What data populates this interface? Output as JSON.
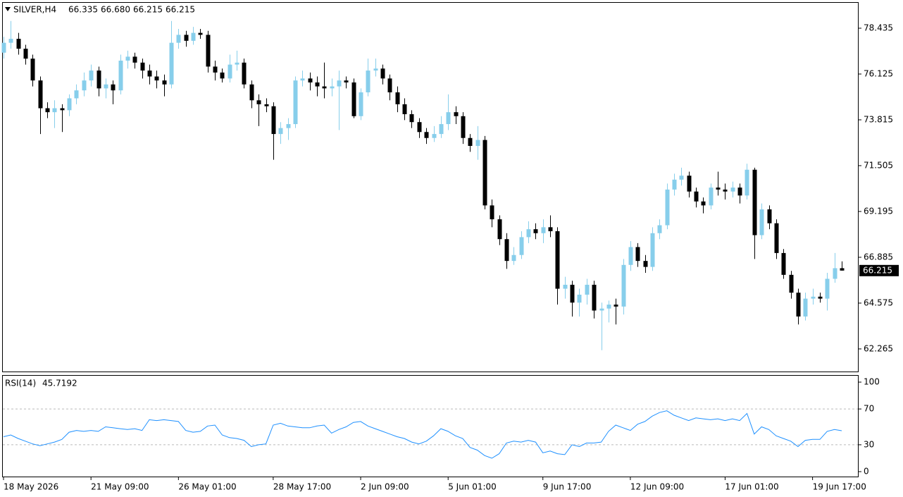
{
  "chart_data": {
    "type": "candlestick",
    "symbol": "SILVER,H4",
    "header_values": [
      66.335,
      {
        "value": 66.68,
        "label": "66.680"
      },
      66.215,
      66.215
    ],
    "current_price": 66.215,
    "up_color": "#87ceeb",
    "down_color": "#000000",
    "ylim": [
      61.09,
      79.75
    ],
    "yticks": [
      62.265,
      64.575,
      66.885,
      69.195,
      71.505,
      73.815,
      76.125,
      78.435
    ],
    "categories": [
      "18 May 2026",
      null,
      null,
      null,
      null,
      null,
      null,
      null,
      null,
      null,
      null,
      null,
      "21 May 09:00",
      null,
      null,
      null,
      null,
      null,
      null,
      null,
      null,
      null,
      null,
      null,
      "26 May 01:00",
      null,
      null,
      null,
      null,
      null,
      null,
      null,
      null,
      null,
      null,
      null,
      null,
      "28 May 17:00",
      null,
      null,
      null,
      null,
      null,
      null,
      null,
      null,
      null,
      null,
      null,
      "2 Jun 09:00",
      null,
      null,
      null,
      null,
      null,
      null,
      null,
      null,
      null,
      null,
      null,
      "5 Jun 01:00",
      null,
      null,
      null,
      null,
      null,
      null,
      null,
      null,
      null,
      null,
      null,
      null,
      "9 Jun 17:00",
      null,
      null,
      null,
      null,
      null,
      null,
      null,
      null,
      null,
      null,
      null,
      "12 Jun 09:00",
      null,
      null,
      null,
      null,
      null,
      null,
      null,
      null,
      null,
      null,
      null,
      null,
      "17 Jun 01:00",
      null,
      null,
      null,
      null,
      null,
      null,
      null,
      null,
      null,
      null,
      null,
      "19 Jun 17:00",
      null,
      null,
      null,
      null
    ],
    "ohlc": [
      [
        77.2,
        78.0,
        76.9,
        77.7
      ],
      [
        77.7,
        78.8,
        77.4,
        77.9
      ],
      [
        77.9,
        78.2,
        77.1,
        77.4
      ],
      [
        77.4,
        77.6,
        76.6,
        76.9
      ],
      [
        76.9,
        77.1,
        75.5,
        75.8
      ],
      [
        75.8,
        76.0,
        73.1,
        74.4
      ],
      [
        74.4,
        74.7,
        73.9,
        74.2
      ],
      [
        74.2,
        74.8,
        73.4,
        74.4
      ],
      [
        74.4,
        74.6,
        73.2,
        74.3
      ],
      [
        74.3,
        75.1,
        74.0,
        74.9
      ],
      [
        74.9,
        75.6,
        74.6,
        75.3
      ],
      [
        75.3,
        76.2,
        75.0,
        75.8
      ],
      [
        75.8,
        76.6,
        75.5,
        76.3
      ],
      [
        76.3,
        76.5,
        75.0,
        75.4
      ],
      [
        75.4,
        75.9,
        74.9,
        75.6
      ],
      [
        75.6,
        75.8,
        74.6,
        75.3
      ],
      [
        75.3,
        77.1,
        75.1,
        76.8
      ],
      [
        76.8,
        77.3,
        76.4,
        77.0
      ],
      [
        77.0,
        77.2,
        76.4,
        76.7
      ],
      [
        76.7,
        76.9,
        75.9,
        76.3
      ],
      [
        76.3,
        76.6,
        75.6,
        76.0
      ],
      [
        76.0,
        76.3,
        75.4,
        75.8
      ],
      [
        75.8,
        76.1,
        75.0,
        75.6
      ],
      [
        75.6,
        78.8,
        75.4,
        77.7
      ],
      [
        77.7,
        78.4,
        77.4,
        78.1
      ],
      [
        78.1,
        78.3,
        77.5,
        77.8
      ],
      [
        77.8,
        78.5,
        77.6,
        78.2
      ],
      [
        78.2,
        78.4,
        77.9,
        78.1
      ],
      [
        78.1,
        78.3,
        76.2,
        76.5
      ],
      [
        76.5,
        76.8,
        75.8,
        76.2
      ],
      [
        76.2,
        76.4,
        75.7,
        75.9
      ],
      [
        75.9,
        77.1,
        75.7,
        76.6
      ],
      [
        76.6,
        77.3,
        76.3,
        76.7
      ],
      [
        76.7,
        76.9,
        75.4,
        75.6
      ],
      [
        75.6,
        75.8,
        74.4,
        74.8
      ],
      [
        74.8,
        75.1,
        73.5,
        74.6
      ],
      [
        74.6,
        74.9,
        74.2,
        74.5
      ],
      [
        74.5,
        74.7,
        71.8,
        73.1
      ],
      [
        73.1,
        73.7,
        72.6,
        73.4
      ],
      [
        73.4,
        73.9,
        72.8,
        73.6
      ],
      [
        73.6,
        76.0,
        73.4,
        75.8
      ],
      [
        75.8,
        76.3,
        75.5,
        75.9
      ],
      [
        75.9,
        76.2,
        75.3,
        75.7
      ],
      [
        75.7,
        76.0,
        75.0,
        75.5
      ],
      [
        75.5,
        76.7,
        74.9,
        75.4
      ],
      [
        75.4,
        75.9,
        75.0,
        75.5
      ],
      [
        75.5,
        76.3,
        73.3,
        75.8
      ],
      [
        75.8,
        76.0,
        75.4,
        75.7
      ],
      [
        75.7,
        75.9,
        73.9,
        74.0
      ],
      [
        74.0,
        75.4,
        73.8,
        75.2
      ],
      [
        75.2,
        76.9,
        75.0,
        76.3
      ],
      [
        76.3,
        76.9,
        76.0,
        76.4
      ],
      [
        76.4,
        76.6,
        75.6,
        75.9
      ],
      [
        75.9,
        76.1,
        74.8,
        75.2
      ],
      [
        75.2,
        75.5,
        74.2,
        74.6
      ],
      [
        74.6,
        74.9,
        73.8,
        74.1
      ],
      [
        74.1,
        74.3,
        73.4,
        73.7
      ],
      [
        73.7,
        73.9,
        72.9,
        73.2
      ],
      [
        73.2,
        73.4,
        72.6,
        72.9
      ],
      [
        72.9,
        73.5,
        72.7,
        73.1
      ],
      [
        73.1,
        74.0,
        72.9,
        73.6
      ],
      [
        73.6,
        75.1,
        73.3,
        74.2
      ],
      [
        74.2,
        74.5,
        73.6,
        74.0
      ],
      [
        74.0,
        74.2,
        72.6,
        72.9
      ],
      [
        72.9,
        73.1,
        72.2,
        72.5
      ],
      [
        72.5,
        73.5,
        71.8,
        72.8
      ],
      [
        72.8,
        73.0,
        69.3,
        69.5
      ],
      [
        69.5,
        69.8,
        68.4,
        68.8
      ],
      [
        68.8,
        69.0,
        67.5,
        67.8
      ],
      [
        67.8,
        68.1,
        66.3,
        66.7
      ],
      [
        66.7,
        67.4,
        66.5,
        67.0
      ],
      [
        67.0,
        68.2,
        66.8,
        67.9
      ],
      [
        67.9,
        68.7,
        67.6,
        68.3
      ],
      [
        68.3,
        68.6,
        67.8,
        68.1
      ],
      [
        68.1,
        68.8,
        67.6,
        68.4
      ],
      [
        68.4,
        69.0,
        67.9,
        68.2
      ],
      [
        68.2,
        68.4,
        64.5,
        65.3
      ],
      [
        65.3,
        65.9,
        64.8,
        65.5
      ],
      [
        65.5,
        65.7,
        63.9,
        64.6
      ],
      [
        64.6,
        65.3,
        63.9,
        65.0
      ],
      [
        65.0,
        65.8,
        64.5,
        65.5
      ],
      [
        65.5,
        65.7,
        63.8,
        64.2
      ],
      [
        64.2,
        64.6,
        62.2,
        64.3
      ],
      [
        64.3,
        64.7,
        63.6,
        64.5
      ],
      [
        64.5,
        64.8,
        63.5,
        64.4
      ],
      [
        64.4,
        66.8,
        64.0,
        66.5
      ],
      [
        66.5,
        67.7,
        66.2,
        67.4
      ],
      [
        67.4,
        67.6,
        66.4,
        66.7
      ],
      [
        66.7,
        67.0,
        66.1,
        66.4
      ],
      [
        66.4,
        68.4,
        66.2,
        68.1
      ],
      [
        68.1,
        68.8,
        67.8,
        68.5
      ],
      [
        68.5,
        70.6,
        68.3,
        70.3
      ],
      [
        70.3,
        71.1,
        70.0,
        70.8
      ],
      [
        70.8,
        71.4,
        70.5,
        71.0
      ],
      [
        71.0,
        71.2,
        69.9,
        70.2
      ],
      [
        70.2,
        70.4,
        69.4,
        69.7
      ],
      [
        69.7,
        69.9,
        69.1,
        69.5
      ],
      [
        69.5,
        70.6,
        69.3,
        70.4
      ],
      [
        70.4,
        71.2,
        70.0,
        70.3
      ],
      [
        70.3,
        70.6,
        69.8,
        70.2
      ],
      [
        70.2,
        70.7,
        69.9,
        70.4
      ],
      [
        70.4,
        70.6,
        69.6,
        70.0
      ],
      [
        70.0,
        71.6,
        69.8,
        71.3
      ],
      [
        71.3,
        71.4,
        66.8,
        68.0
      ],
      [
        68.0,
        69.6,
        67.8,
        69.3
      ],
      [
        69.3,
        69.5,
        68.3,
        68.6
      ],
      [
        68.6,
        68.8,
        66.8,
        67.1
      ],
      [
        67.1,
        67.3,
        65.8,
        66.0
      ],
      [
        66.0,
        66.2,
        64.8,
        65.1
      ],
      [
        65.1,
        65.3,
        63.5,
        63.9
      ],
      [
        63.9,
        65.1,
        63.7,
        64.8
      ],
      [
        64.8,
        65.3,
        64.5,
        64.9
      ],
      [
        64.9,
        65.1,
        64.6,
        64.8
      ],
      [
        64.8,
        66.1,
        64.2,
        65.8
      ],
      [
        65.8,
        67.1,
        65.6,
        66.335
      ],
      [
        66.335,
        66.68,
        66.215,
        66.215
      ]
    ],
    "indicator": {
      "type": "line",
      "name": "RSI(14)",
      "color": "#1e90ff",
      "ylim": [
        -5.5,
        107.9
      ],
      "yticks": [
        0,
        30,
        70,
        100
      ],
      "levels": [
        30,
        70
      ],
      "values": [
        39,
        41,
        37,
        34,
        31,
        29,
        31,
        33,
        36,
        44,
        46,
        45,
        46,
        45,
        50,
        49,
        48,
        47,
        48,
        46,
        58,
        57,
        58,
        57,
        56,
        46,
        44,
        45,
        51,
        52,
        41,
        38,
        37,
        35,
        28,
        30,
        31,
        52,
        54,
        51,
        50,
        49,
        49,
        51,
        52,
        43,
        47,
        50,
        55,
        56,
        51,
        48,
        45,
        42,
        39,
        37,
        33,
        31,
        34,
        40,
        48,
        45,
        40,
        37,
        27,
        24,
        18,
        15,
        20,
        32,
        34,
        33,
        35,
        33,
        21,
        23,
        20,
        19,
        30,
        28,
        32,
        32,
        33,
        45,
        52,
        49,
        46,
        53,
        56,
        62,
        66,
        68,
        63,
        60,
        57,
        60,
        59,
        58,
        59,
        57,
        59,
        57,
        65,
        42,
        50,
        47,
        40,
        37,
        34,
        28,
        35,
        36,
        36,
        45,
        47,
        45.7192
      ]
    }
  }
}
